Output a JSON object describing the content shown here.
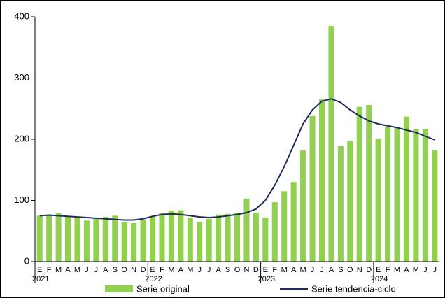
{
  "chart_data": {
    "type": "bar_line",
    "categories": [
      "E",
      "F",
      "M",
      "A",
      "M",
      "J",
      "J",
      "A",
      "S",
      "O",
      "N",
      "D",
      "E",
      "F",
      "M",
      "A",
      "M",
      "J",
      "J",
      "A",
      "S",
      "O",
      "N",
      "D",
      "E",
      "F",
      "M",
      "A",
      "M",
      "J",
      "J",
      "A",
      "S",
      "O",
      "N",
      "D",
      "E",
      "F",
      "M",
      "A",
      "M",
      "J",
      "J"
    ],
    "years": [
      "2021",
      "2022",
      "2023",
      "2024"
    ],
    "series": [
      {
        "name": "Serie original",
        "color": "#92d050",
        "kind": "bar",
        "values": [
          75,
          75,
          80,
          74,
          72,
          67,
          70,
          73,
          75,
          64,
          63,
          68,
          74,
          79,
          83,
          84,
          72,
          65,
          70,
          77,
          78,
          80,
          103,
          80,
          72,
          97,
          115,
          130,
          182,
          238,
          265,
          385,
          189,
          197,
          253,
          256,
          201,
          220,
          218,
          237,
          216,
          216,
          182
        ]
      },
      {
        "name": "Serie tendencia-ciclo",
        "color": "#1f2d5a",
        "kind": "line",
        "values": [
          75,
          76,
          75,
          74,
          73,
          72,
          71,
          70,
          69,
          68,
          68,
          70,
          74,
          77,
          78,
          77,
          75,
          73,
          72,
          73,
          75,
          77,
          80,
          86,
          100,
          125,
          155,
          190,
          225,
          248,
          262,
          266,
          260,
          248,
          238,
          230,
          225,
          222,
          219,
          215,
          211,
          205,
          199
        ]
      }
    ],
    "ylim": [
      0,
      400
    ],
    "yticks": [
      0,
      100,
      200,
      300,
      400
    ]
  }
}
